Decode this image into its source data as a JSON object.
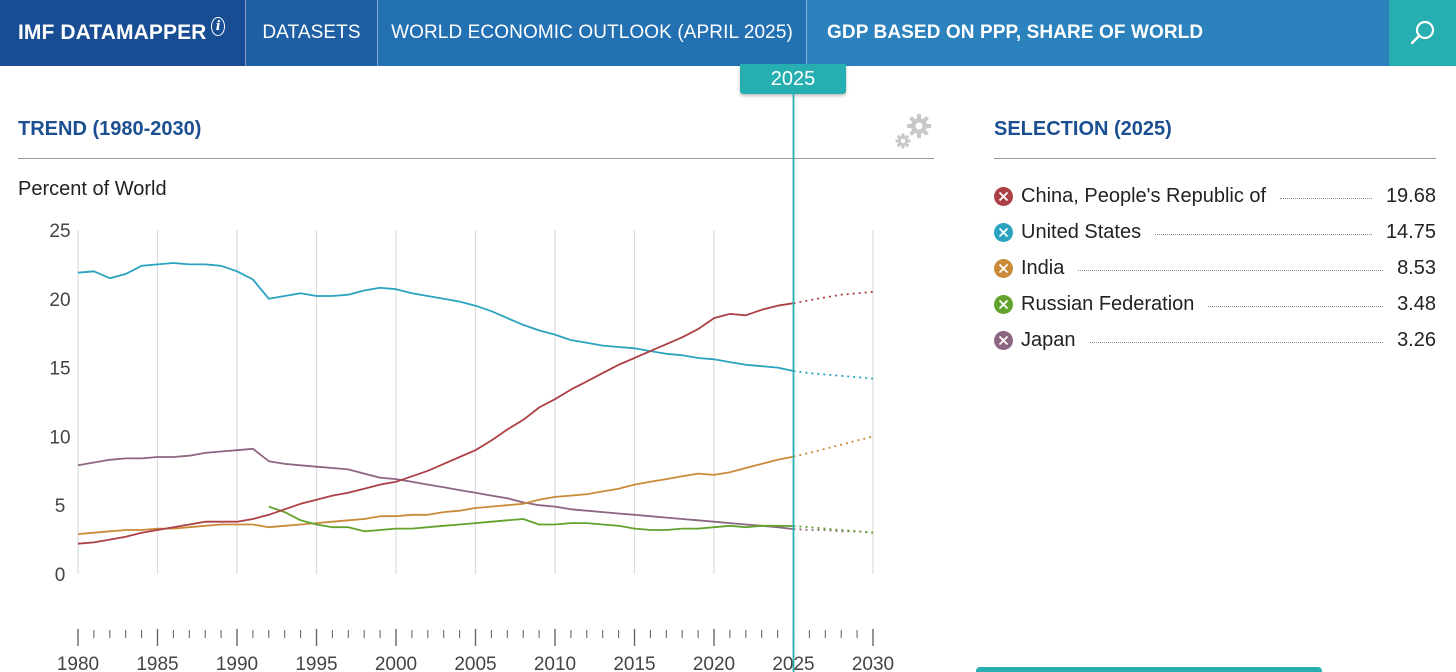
{
  "header": {
    "logo": "IMF DATAMAPPER",
    "logo_info_glyph": "i",
    "datasets": "DATASETS",
    "dataset_name": "WORLD ECONOMIC OUTLOOK (APRIL 2025)",
    "indicator": "GDP BASED ON PPP, SHARE OF WORLD",
    "search_icon": "search-icon",
    "info_icon": "info-icon"
  },
  "year_marker": "2025",
  "trend_title": "TREND (1980-2030)",
  "settings_icon": "gears-icon",
  "selection_title": "SELECTION (2025)",
  "colors": {
    "header_logo": "#184c93",
    "header": "#1f5fa3",
    "accent": "#26aeb0",
    "title": "#1b4f92",
    "china": "#ad4046",
    "us": "#2aa3bf",
    "india": "#c98b3a",
    "russia": "#62a32e",
    "japan": "#8c6680"
  },
  "selection": [
    {
      "name": "China, People's Republic of",
      "value": "19.68",
      "color": "#ad4046"
    },
    {
      "name": "United States",
      "value": "14.75",
      "color": "#2aa3bf"
    },
    {
      "name": "India",
      "value": "8.53",
      "color": "#c98b3a"
    },
    {
      "name": "Russian Federation",
      "value": "3.48",
      "color": "#62a32e"
    },
    {
      "name": "Japan",
      "value": "3.26",
      "color": "#8c6680"
    }
  ],
  "chart_data": {
    "type": "line",
    "title": "",
    "xlabel": "",
    "ylabel": "Percent of World",
    "xlim": [
      1980,
      2030
    ],
    "ylim": [
      0,
      25
    ],
    "x_ticks": [
      1980,
      1985,
      1990,
      1995,
      2000,
      2005,
      2010,
      2015,
      2020,
      2025,
      2030
    ],
    "y_ticks": [
      0,
      5,
      10,
      15,
      20,
      25
    ],
    "grid": "vertical",
    "projection_start": 2025,
    "series": [
      {
        "name": "China, People's Republic of",
        "color": "#ad4046",
        "points": [
          [
            1980,
            2.2
          ],
          [
            1981,
            2.3
          ],
          [
            1982,
            2.5
          ],
          [
            1983,
            2.7
          ],
          [
            1984,
            3.0
          ],
          [
            1985,
            3.2
          ],
          [
            1986,
            3.4
          ],
          [
            1987,
            3.6
          ],
          [
            1988,
            3.8
          ],
          [
            1989,
            3.8
          ],
          [
            1990,
            3.8
          ],
          [
            1991,
            4.0
          ],
          [
            1992,
            4.3
          ],
          [
            1993,
            4.7
          ],
          [
            1994,
            5.1
          ],
          [
            1995,
            5.4
          ],
          [
            1996,
            5.7
          ],
          [
            1997,
            5.9
          ],
          [
            1998,
            6.2
          ],
          [
            1999,
            6.5
          ],
          [
            2000,
            6.7
          ],
          [
            2001,
            7.1
          ],
          [
            2002,
            7.5
          ],
          [
            2003,
            8.0
          ],
          [
            2004,
            8.5
          ],
          [
            2005,
            9.0
          ],
          [
            2006,
            9.7
          ],
          [
            2007,
            10.5
          ],
          [
            2008,
            11.2
          ],
          [
            2009,
            12.1
          ],
          [
            2010,
            12.7
          ],
          [
            2011,
            13.4
          ],
          [
            2012,
            14.0
          ],
          [
            2013,
            14.6
          ],
          [
            2014,
            15.2
          ],
          [
            2015,
            15.7
          ],
          [
            2016,
            16.2
          ],
          [
            2017,
            16.7
          ],
          [
            2018,
            17.2
          ],
          [
            2019,
            17.8
          ],
          [
            2020,
            18.6
          ],
          [
            2021,
            18.9
          ],
          [
            2022,
            18.8
          ],
          [
            2023,
            19.2
          ],
          [
            2024,
            19.5
          ],
          [
            2025,
            19.68
          ],
          [
            2026,
            19.9
          ],
          [
            2027,
            20.1
          ],
          [
            2028,
            20.3
          ],
          [
            2029,
            20.4
          ],
          [
            2030,
            20.5
          ]
        ]
      },
      {
        "name": "United States",
        "color": "#2aa3bf",
        "points": [
          [
            1980,
            21.9
          ],
          [
            1981,
            22.0
          ],
          [
            1982,
            21.5
          ],
          [
            1983,
            21.8
          ],
          [
            1984,
            22.4
          ],
          [
            1985,
            22.5
          ],
          [
            1986,
            22.6
          ],
          [
            1987,
            22.5
          ],
          [
            1988,
            22.5
          ],
          [
            1989,
            22.4
          ],
          [
            1990,
            22.0
          ],
          [
            1991,
            21.4
          ],
          [
            1992,
            20.0
          ],
          [
            1993,
            20.2
          ],
          [
            1994,
            20.4
          ],
          [
            1995,
            20.2
          ],
          [
            1996,
            20.2
          ],
          [
            1997,
            20.3
          ],
          [
            1998,
            20.6
          ],
          [
            1999,
            20.8
          ],
          [
            2000,
            20.7
          ],
          [
            2001,
            20.4
          ],
          [
            2002,
            20.2
          ],
          [
            2003,
            20.0
          ],
          [
            2004,
            19.8
          ],
          [
            2005,
            19.5
          ],
          [
            2006,
            19.1
          ],
          [
            2007,
            18.6
          ],
          [
            2008,
            18.1
          ],
          [
            2009,
            17.7
          ],
          [
            2010,
            17.4
          ],
          [
            2011,
            17.0
          ],
          [
            2012,
            16.8
          ],
          [
            2013,
            16.6
          ],
          [
            2014,
            16.5
          ],
          [
            2015,
            16.4
          ],
          [
            2016,
            16.2
          ],
          [
            2017,
            16.0
          ],
          [
            2018,
            15.9
          ],
          [
            2019,
            15.7
          ],
          [
            2020,
            15.6
          ],
          [
            2021,
            15.4
          ],
          [
            2022,
            15.2
          ],
          [
            2023,
            15.1
          ],
          [
            2024,
            15.0
          ],
          [
            2025,
            14.75
          ],
          [
            2026,
            14.6
          ],
          [
            2027,
            14.5
          ],
          [
            2028,
            14.4
          ],
          [
            2029,
            14.3
          ],
          [
            2030,
            14.2
          ]
        ]
      },
      {
        "name": "India",
        "color": "#c98b3a",
        "points": [
          [
            1980,
            2.9
          ],
          [
            1981,
            3.0
          ],
          [
            1982,
            3.1
          ],
          [
            1983,
            3.2
          ],
          [
            1984,
            3.2
          ],
          [
            1985,
            3.3
          ],
          [
            1986,
            3.3
          ],
          [
            1987,
            3.4
          ],
          [
            1988,
            3.5
          ],
          [
            1989,
            3.6
          ],
          [
            1990,
            3.6
          ],
          [
            1991,
            3.6
          ],
          [
            1992,
            3.4
          ],
          [
            1993,
            3.5
          ],
          [
            1994,
            3.6
          ],
          [
            1995,
            3.7
          ],
          [
            1996,
            3.8
          ],
          [
            1997,
            3.9
          ],
          [
            1998,
            4.0
          ],
          [
            1999,
            4.2
          ],
          [
            2000,
            4.2
          ],
          [
            2001,
            4.3
          ],
          [
            2002,
            4.3
          ],
          [
            2003,
            4.5
          ],
          [
            2004,
            4.6
          ],
          [
            2005,
            4.8
          ],
          [
            2006,
            4.9
          ],
          [
            2007,
            5.0
          ],
          [
            2008,
            5.1
          ],
          [
            2009,
            5.4
          ],
          [
            2010,
            5.6
          ],
          [
            2011,
            5.7
          ],
          [
            2012,
            5.8
          ],
          [
            2013,
            6.0
          ],
          [
            2014,
            6.2
          ],
          [
            2015,
            6.5
          ],
          [
            2016,
            6.7
          ],
          [
            2017,
            6.9
          ],
          [
            2018,
            7.1
          ],
          [
            2019,
            7.3
          ],
          [
            2020,
            7.2
          ],
          [
            2021,
            7.4
          ],
          [
            2022,
            7.7
          ],
          [
            2023,
            8.0
          ],
          [
            2024,
            8.3
          ],
          [
            2025,
            8.53
          ],
          [
            2026,
            8.8
          ],
          [
            2027,
            9.1
          ],
          [
            2028,
            9.4
          ],
          [
            2029,
            9.7
          ],
          [
            2030,
            10.0
          ]
        ]
      },
      {
        "name": "Russian Federation",
        "color": "#62a32e",
        "points": [
          [
            1992,
            4.9
          ],
          [
            1993,
            4.5
          ],
          [
            1994,
            3.9
          ],
          [
            1995,
            3.6
          ],
          [
            1996,
            3.4
          ],
          [
            1997,
            3.4
          ],
          [
            1998,
            3.1
          ],
          [
            1999,
            3.2
          ],
          [
            2000,
            3.3
          ],
          [
            2001,
            3.3
          ],
          [
            2002,
            3.4
          ],
          [
            2003,
            3.5
          ],
          [
            2004,
            3.6
          ],
          [
            2005,
            3.7
          ],
          [
            2006,
            3.8
          ],
          [
            2007,
            3.9
          ],
          [
            2008,
            4.0
          ],
          [
            2009,
            3.6
          ],
          [
            2010,
            3.6
          ],
          [
            2011,
            3.7
          ],
          [
            2012,
            3.7
          ],
          [
            2013,
            3.6
          ],
          [
            2014,
            3.5
          ],
          [
            2015,
            3.3
          ],
          [
            2016,
            3.2
          ],
          [
            2017,
            3.2
          ],
          [
            2018,
            3.3
          ],
          [
            2019,
            3.3
          ],
          [
            2020,
            3.4
          ],
          [
            2021,
            3.5
          ],
          [
            2022,
            3.4
          ],
          [
            2023,
            3.5
          ],
          [
            2024,
            3.5
          ],
          [
            2025,
            3.48
          ],
          [
            2026,
            3.4
          ],
          [
            2027,
            3.3
          ],
          [
            2028,
            3.2
          ],
          [
            2029,
            3.1
          ],
          [
            2030,
            3.0
          ]
        ]
      },
      {
        "name": "Japan",
        "color": "#8c6680",
        "points": [
          [
            1980,
            7.9
          ],
          [
            1981,
            8.1
          ],
          [
            1982,
            8.3
          ],
          [
            1983,
            8.4
          ],
          [
            1984,
            8.4
          ],
          [
            1985,
            8.5
          ],
          [
            1986,
            8.5
          ],
          [
            1987,
            8.6
          ],
          [
            1988,
            8.8
          ],
          [
            1989,
            8.9
          ],
          [
            1990,
            9.0
          ],
          [
            1991,
            9.1
          ],
          [
            1992,
            8.2
          ],
          [
            1993,
            8.0
          ],
          [
            1994,
            7.9
          ],
          [
            1995,
            7.8
          ],
          [
            1996,
            7.7
          ],
          [
            1997,
            7.6
          ],
          [
            1998,
            7.3
          ],
          [
            1999,
            7.0
          ],
          [
            2000,
            6.9
          ],
          [
            2001,
            6.7
          ],
          [
            2002,
            6.5
          ],
          [
            2003,
            6.3
          ],
          [
            2004,
            6.1
          ],
          [
            2005,
            5.9
          ],
          [
            2006,
            5.7
          ],
          [
            2007,
            5.5
          ],
          [
            2008,
            5.2
          ],
          [
            2009,
            5.0
          ],
          [
            2010,
            4.9
          ],
          [
            2011,
            4.7
          ],
          [
            2012,
            4.6
          ],
          [
            2013,
            4.5
          ],
          [
            2014,
            4.4
          ],
          [
            2015,
            4.3
          ],
          [
            2016,
            4.2
          ],
          [
            2017,
            4.1
          ],
          [
            2018,
            4.0
          ],
          [
            2019,
            3.9
          ],
          [
            2020,
            3.8
          ],
          [
            2021,
            3.7
          ],
          [
            2022,
            3.6
          ],
          [
            2023,
            3.5
          ],
          [
            2024,
            3.4
          ],
          [
            2025,
            3.26
          ],
          [
            2026,
            3.2
          ],
          [
            2027,
            3.2
          ],
          [
            2028,
            3.1
          ],
          [
            2029,
            3.1
          ],
          [
            2030,
            3.0
          ]
        ]
      }
    ]
  }
}
